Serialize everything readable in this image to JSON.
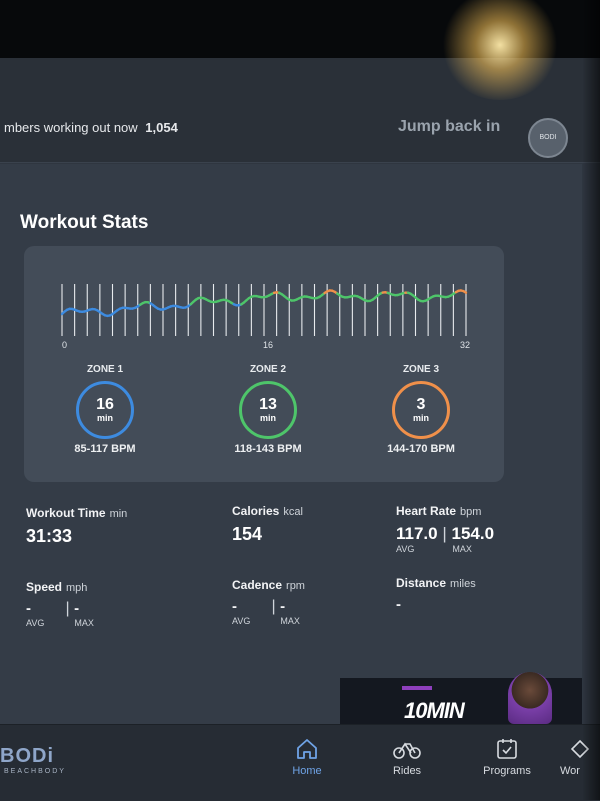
{
  "topbar": {
    "members_text": "mbers working out now",
    "members_count": "1,054",
    "jump_label": "Jump back in",
    "badge_text": "BODI"
  },
  "workout_stats": {
    "title": "Workout Stats",
    "chart_data": {
      "type": "line",
      "x_ticks": [
        "0",
        "16",
        "32"
      ],
      "xlim": [
        0,
        32
      ],
      "zone_colors": {
        "zone1": "#3d8be0",
        "zone2": "#4ec56a",
        "zone3": "#f0904a"
      }
    },
    "zones": [
      {
        "label": "ZONE 1",
        "value": "16",
        "unit": "min",
        "bpm": "85-117 BPM",
        "color": "#3d8be0"
      },
      {
        "label": "ZONE 2",
        "value": "13",
        "unit": "min",
        "bpm": "118-143 BPM",
        "color": "#4ec56a"
      },
      {
        "label": "ZONE 3",
        "value": "3",
        "unit": "min",
        "bpm": "144-170 BPM",
        "color": "#f0904a"
      }
    ]
  },
  "stats": {
    "workout_time": {
      "label": "Workout Time",
      "unit": "min",
      "value": "31:33"
    },
    "calories": {
      "label": "Calories",
      "unit": "kcal",
      "value": "154"
    },
    "heart_rate": {
      "label": "Heart Rate",
      "unit": "bpm",
      "avg": "117.0",
      "max": "154.0",
      "avg_label": "AVG",
      "max_label": "MAX"
    },
    "speed": {
      "label": "Speed",
      "unit": "mph",
      "avg": "-",
      "max": "-",
      "avg_label": "AVG",
      "max_label": "MAX"
    },
    "cadence": {
      "label": "Cadence",
      "unit": "rpm",
      "avg": "-",
      "max": "-",
      "avg_label": "AVG",
      "max_label": "MAX"
    },
    "distance": {
      "label": "Distance",
      "unit": "miles",
      "value": "-"
    }
  },
  "promo": {
    "text": "10MIN"
  },
  "footer": {
    "logo": "BODi",
    "logo_sub": "BEACHBODY",
    "nav": [
      {
        "label": "Home",
        "icon": "home-icon",
        "active": true
      },
      {
        "label": "Rides",
        "icon": "bike-icon",
        "active": false
      },
      {
        "label": "Programs",
        "icon": "programs-icon",
        "active": false
      },
      {
        "label": "Wor",
        "icon": "workouts-icon",
        "active": false
      }
    ]
  }
}
